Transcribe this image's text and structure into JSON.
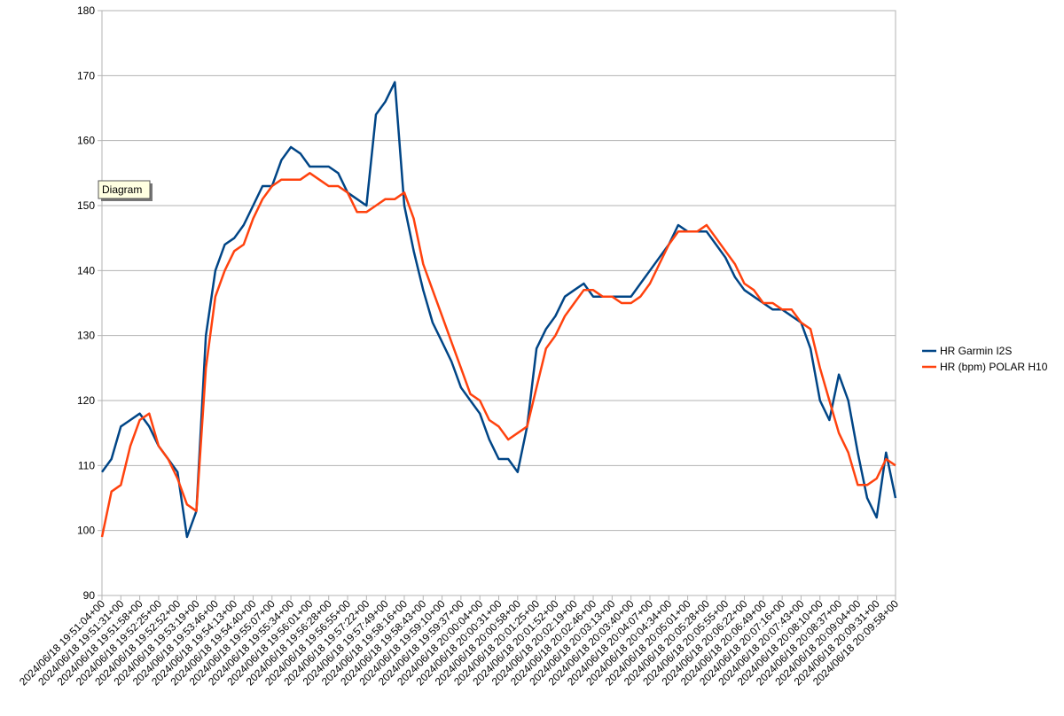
{
  "chart_data": {
    "type": "line",
    "annotation": "Diagram",
    "categories": [
      "2024/06/18 19:51:04+00",
      null,
      "2024/06/18 19:51:31+00",
      null,
      "2024/06/18 19:51:58+00",
      null,
      "2024/06/18 19:52:25+00",
      null,
      "2024/06/18 19:52:52+00",
      null,
      "2024/06/18 19:53:19+00",
      null,
      "2024/06/18 19:53:46+00",
      null,
      "2024/06/18 19:54:13+00",
      null,
      "2024/06/18 19:54:40+00",
      null,
      "2024/06/18 19:55:07+00",
      null,
      "2024/06/18 19:55:34+00",
      null,
      "2024/06/18 19:56:01+00",
      null,
      "2024/06/18 19:56:28+00",
      null,
      "2024/06/18 19:56:55+00",
      null,
      "2024/06/18 19:57:22+00",
      null,
      "2024/06/18 19:57:49+00",
      null,
      "2024/06/18 19:58:16+00",
      null,
      "2024/06/18 19:58:43+00",
      null,
      "2024/06/18 19:59:10+00",
      null,
      "2024/06/18 19:59:37+00",
      null,
      "2024/06/18 20:00:04+00",
      null,
      "2024/06/18 20:00:31+00",
      null,
      "2024/06/18 20:00:58+00",
      null,
      "2024/06/18 20:01:25+00",
      null,
      "2024/06/18 20:01:52+00",
      null,
      "2024/06/18 20:02:19+00",
      null,
      "2024/06/18 20:02:46+00",
      null,
      "2024/06/18 20:03:13+00",
      null,
      "2024/06/18 20:03:40+00",
      null,
      "2024/06/18 20:04:07+00",
      null,
      "2024/06/18 20:04:34+00",
      null,
      "2024/06/18 20:05:01+00",
      null,
      "2024/06/18 20:05:28+00",
      null,
      "2024/06/18 20:05:55+00",
      null,
      "2024/06/18 20:06:22+00",
      null,
      "2024/06/18 20:06:49+00",
      null,
      "2024/06/18 20:07:16+00",
      null,
      "2024/06/18 20:07:43+00",
      null,
      "2024/06/18 20:08:10+00",
      null,
      "2024/06/18 20:08:37+00",
      null,
      "2024/06/18 20:09:04+00",
      null,
      "2024/06/18 20:09:31+00",
      null,
      "2024/06/18 20:09:58+00"
    ],
    "series": [
      {
        "name": "HR Garmin I2S",
        "color": "#004586",
        "values": [
          109,
          111,
          116,
          117,
          118,
          116,
          113,
          111,
          109,
          99,
          103,
          130,
          140,
          144,
          145,
          147,
          150,
          153,
          153,
          157,
          159,
          158,
          156,
          156,
          156,
          155,
          152,
          151,
          150,
          164,
          166,
          169,
          150,
          143,
          137,
          132,
          129,
          126,
          122,
          120,
          118,
          114,
          111,
          111,
          109,
          116,
          128,
          131,
          133,
          136,
          137,
          138,
          136,
          136,
          136,
          136,
          136,
          138,
          140,
          142,
          144,
          147,
          146,
          146,
          146,
          144,
          142,
          139,
          137,
          136,
          135,
          134,
          134,
          133,
          132,
          128,
          120,
          117,
          124,
          120,
          112,
          105,
          102,
          112,
          105
        ]
      },
      {
        "name": "HR (bpm) POLAR H10",
        "color": "#ff420e",
        "values": [
          99,
          106,
          107,
          113,
          117,
          118,
          113,
          111,
          108,
          104,
          103,
          125,
          136,
          140,
          143,
          144,
          148,
          151,
          153,
          154,
          154,
          154,
          155,
          154,
          153,
          153,
          152,
          149,
          149,
          150,
          151,
          151,
          152,
          148,
          141,
          137,
          133,
          129,
          125,
          121,
          120,
          117,
          116,
          114,
          115,
          116,
          122,
          128,
          130,
          133,
          135,
          137,
          137,
          136,
          136,
          135,
          135,
          136,
          138,
          141,
          144,
          146,
          146,
          146,
          147,
          145,
          143,
          141,
          138,
          137,
          135,
          135,
          134,
          134,
          132,
          131,
          125,
          120,
          115,
          112,
          107,
          107,
          108,
          111,
          110
        ]
      }
    ],
    "ylim": [
      90,
      180
    ],
    "yticks": [
      90,
      100,
      110,
      120,
      130,
      140,
      150,
      160,
      170,
      180
    ],
    "grid": true,
    "legend": "right"
  }
}
